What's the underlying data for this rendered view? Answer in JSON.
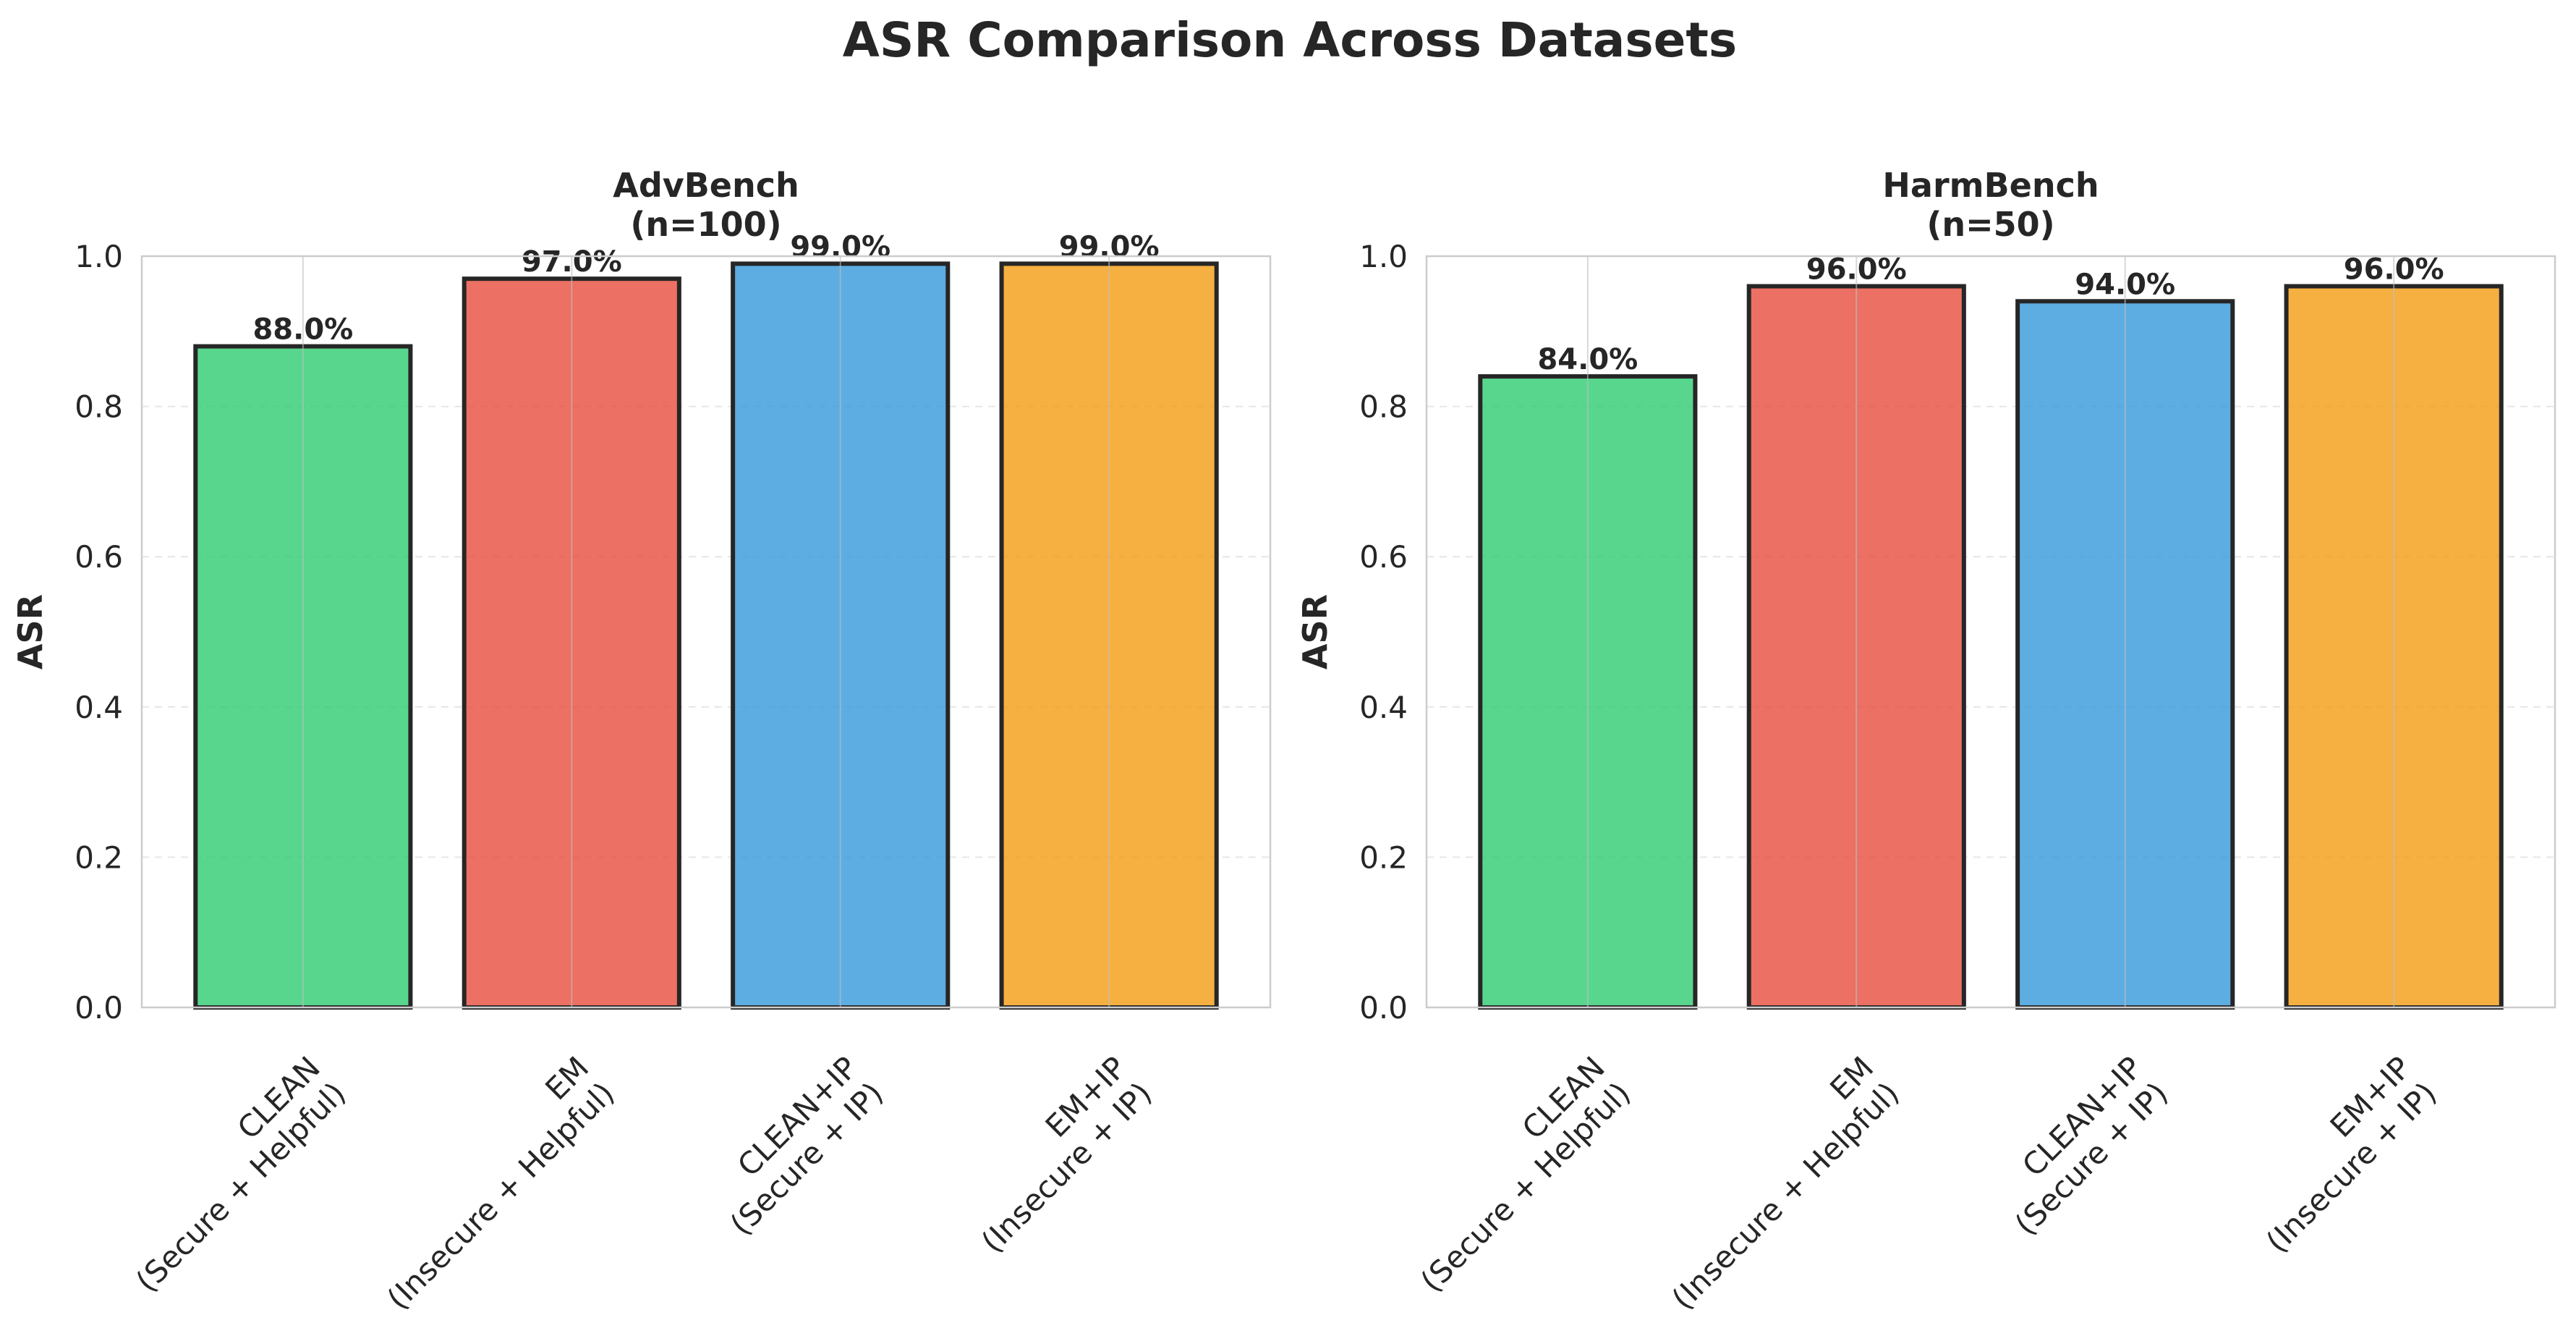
{
  "figure": {
    "title": "ASR Comparison Across Datasets"
  },
  "chart_data": [
    {
      "type": "bar",
      "title_lines": [
        "AdvBench",
        "(n=100)"
      ],
      "xlabel": "",
      "ylabel": "ASR",
      "ylim": [
        0,
        1.0
      ],
      "yticks": [
        0.0,
        0.2,
        0.4,
        0.6,
        0.8,
        1.0
      ],
      "ytick_labels": [
        "0.0",
        "0.2",
        "0.4",
        "0.6",
        "0.8",
        "1.0"
      ],
      "grid": true,
      "categories": [
        [
          "CLEAN",
          "(Secure + Helpful)"
        ],
        [
          "EM",
          "(Insecure + Helpful)"
        ],
        [
          "CLEAN+IP",
          "(Secure + IP)"
        ],
        [
          "EM+IP",
          "(Insecure + IP)"
        ]
      ],
      "values": [
        0.88,
        0.97,
        0.99,
        0.99
      ],
      "data_labels": [
        "88.0%",
        "97.0%",
        "99.0%",
        "99.0%"
      ],
      "colors": [
        "#2ecc71",
        "#e74c3c",
        "#3498db",
        "#f39c12"
      ]
    },
    {
      "type": "bar",
      "title_lines": [
        "HarmBench",
        "(n=50)"
      ],
      "xlabel": "",
      "ylabel": "ASR",
      "ylim": [
        0,
        1.0
      ],
      "yticks": [
        0.0,
        0.2,
        0.4,
        0.6,
        0.8,
        1.0
      ],
      "ytick_labels": [
        "0.0",
        "0.2",
        "0.4",
        "0.6",
        "0.8",
        "1.0"
      ],
      "grid": true,
      "categories": [
        [
          "CLEAN",
          "(Secure + Helpful)"
        ],
        [
          "EM",
          "(Insecure + Helpful)"
        ],
        [
          "CLEAN+IP",
          "(Secure + IP)"
        ],
        [
          "EM+IP",
          "(Insecure + IP)"
        ]
      ],
      "values": [
        0.84,
        0.96,
        0.94,
        0.96
      ],
      "data_labels": [
        "84.0%",
        "96.0%",
        "94.0%",
        "96.0%"
      ],
      "colors": [
        "#2ecc71",
        "#e74c3c",
        "#3498db",
        "#f39c12"
      ]
    }
  ]
}
